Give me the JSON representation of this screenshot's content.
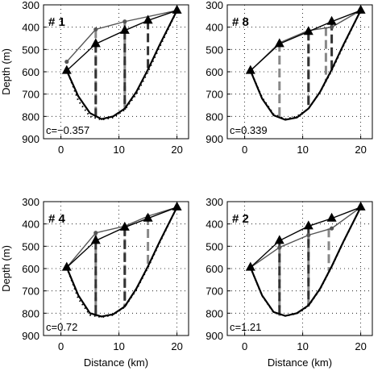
{
  "figure": {
    "xlabel": "Distance (km)",
    "ylabel": "Depth (m)"
  },
  "chart_data": [
    {
      "type": "line",
      "panel_label": "# 1",
      "c_label": "c=−0.357",
      "xlabel": "",
      "ylabel": "Depth (m)",
      "xlim": [
        -3,
        22
      ],
      "ylim": [
        300,
        900
      ],
      "y_reversed": true,
      "grid": true,
      "xticks": [
        "0",
        "10",
        "20"
      ],
      "yticks": [
        "300",
        "400",
        "500",
        "600",
        "700",
        "800",
        "900"
      ],
      "series": [
        {
          "role": "mesh-upper",
          "x": [
            1,
            6,
            11,
            20
          ],
          "y": [
            555,
            410,
            375,
            325
          ],
          "marker": "dot",
          "color": "#555555"
        },
        {
          "role": "mesh-lower",
          "x": [
            1,
            6,
            11,
            15,
            20
          ],
          "y": [
            595,
            475,
            415,
            370,
            325
          ],
          "marker": "triangle",
          "color": "#000000"
        },
        {
          "role": "bed-solid",
          "x": [
            1,
            3,
            5,
            7,
            9,
            11,
            13,
            15,
            17,
            20
          ],
          "y": [
            595,
            710,
            785,
            812,
            800,
            765,
            690,
            590,
            480,
            325
          ],
          "style": "solid"
        },
        {
          "role": "bed-dotted",
          "x": [
            1,
            3,
            5,
            7,
            9,
            11,
            13,
            15,
            17,
            20
          ],
          "y": [
            590,
            730,
            800,
            815,
            805,
            770,
            700,
            600,
            490,
            325
          ],
          "style": "dotted"
        }
      ],
      "verticals": [
        {
          "x": 6,
          "y": [
            410,
            810
          ],
          "color": "#888888"
        },
        {
          "x": 6,
          "y": [
            475,
            810
          ],
          "color": "#333333"
        },
        {
          "x": 11,
          "y": [
            375,
            770
          ],
          "color": "#888888"
        },
        {
          "x": 11,
          "y": [
            415,
            770
          ],
          "color": "#333333"
        },
        {
          "x": 15,
          "y": [
            370,
            600
          ],
          "color": "#333333"
        }
      ]
    },
    {
      "type": "line",
      "panel_label": "# 8",
      "c_label": "c=0.339",
      "xlabel": "",
      "ylabel": "",
      "xlim": [
        -3,
        22
      ],
      "ylim": [
        300,
        900
      ],
      "y_reversed": true,
      "grid": true,
      "xticks": [
        "0",
        "10",
        "20"
      ],
      "yticks": [
        "300",
        "400",
        "500",
        "600",
        "700",
        "800",
        "900"
      ],
      "series": [
        {
          "role": "mesh-upper",
          "x": [
            1,
            6,
            11,
            15,
            20
          ],
          "y": [
            595,
            470,
            415,
            400,
            325
          ],
          "marker": "dot",
          "color": "#555555"
        },
        {
          "role": "mesh-lower",
          "x": [
            1,
            6,
            11,
            15,
            20
          ],
          "y": [
            595,
            475,
            420,
            375,
            325
          ],
          "marker": "triangle",
          "color": "#000000"
        },
        {
          "role": "bed-solid",
          "x": [
            1,
            3,
            5,
            7,
            9,
            11,
            13,
            15,
            17,
            20
          ],
          "y": [
            595,
            720,
            795,
            815,
            805,
            765,
            690,
            590,
            480,
            325
          ],
          "style": "solid"
        },
        {
          "role": "bed-dotted",
          "x": [
            1,
            3,
            5,
            7,
            9,
            11,
            13,
            15,
            17,
            20
          ],
          "y": [
            595,
            715,
            790,
            812,
            800,
            765,
            692,
            595,
            485,
            325
          ],
          "style": "dotted"
        }
      ],
      "verticals": [
        {
          "x": 6,
          "y": [
            470,
            812
          ],
          "color": "#888888"
        },
        {
          "x": 11,
          "y": [
            415,
            765
          ],
          "color": "#888888"
        },
        {
          "x": 11,
          "y": [
            420,
            765
          ],
          "color": "#333333"
        },
        {
          "x": 14,
          "y": [
            400,
            640
          ],
          "color": "#888888"
        },
        {
          "x": 15,
          "y": [
            375,
            590
          ],
          "color": "#333333"
        }
      ]
    },
    {
      "type": "line",
      "panel_label": "# 4",
      "c_label": "c=0.72",
      "xlabel": "Distance (km)",
      "ylabel": "Depth (m)",
      "xlim": [
        -3,
        22
      ],
      "ylim": [
        300,
        900
      ],
      "y_reversed": true,
      "grid": true,
      "xticks": [
        "0",
        "10",
        "20"
      ],
      "yticks": [
        "300",
        "400",
        "500",
        "600",
        "700",
        "800",
        "900"
      ],
      "series": [
        {
          "role": "mesh-upper",
          "x": [
            1,
            6,
            11,
            15,
            20
          ],
          "y": [
            595,
            440,
            410,
            365,
            325
          ],
          "marker": "dot",
          "color": "#555555"
        },
        {
          "role": "mesh-lower",
          "x": [
            1,
            6,
            11,
            15,
            20
          ],
          "y": [
            595,
            475,
            415,
            375,
            325
          ],
          "marker": "triangle",
          "color": "#000000"
        },
        {
          "role": "bed-solid",
          "x": [
            1,
            3,
            5,
            7,
            9,
            11,
            13,
            15,
            17,
            20
          ],
          "y": [
            595,
            720,
            800,
            815,
            805,
            770,
            690,
            590,
            480,
            325
          ],
          "style": "solid"
        },
        {
          "role": "bed-dotted",
          "x": [
            1,
            3,
            5,
            7,
            9,
            11,
            13,
            15,
            17,
            20
          ],
          "y": [
            595,
            735,
            808,
            818,
            808,
            772,
            695,
            595,
            485,
            325
          ],
          "style": "dotted"
        }
      ],
      "verticals": [
        {
          "x": 6,
          "y": [
            440,
            815
          ],
          "color": "#888888"
        },
        {
          "x": 6,
          "y": [
            475,
            815
          ],
          "color": "#333333"
        },
        {
          "x": 11,
          "y": [
            410,
            770
          ],
          "color": "#888888"
        },
        {
          "x": 11,
          "y": [
            415,
            770
          ],
          "color": "#333333"
        },
        {
          "x": 15,
          "y": [
            365,
            590
          ],
          "color": "#888888"
        }
      ]
    },
    {
      "type": "line",
      "panel_label": "# 2",
      "c_label": "c=1.21",
      "xlabel": "Distance (km)",
      "ylabel": "",
      "xlim": [
        -3,
        22
      ],
      "ylim": [
        300,
        900
      ],
      "y_reversed": true,
      "grid": true,
      "xticks": [
        "0",
        "10",
        "20"
      ],
      "yticks": [
        "300",
        "400",
        "500",
        "600",
        "700",
        "800",
        "900"
      ],
      "series": [
        {
          "role": "mesh-upper",
          "x": [
            1,
            6,
            11,
            15,
            20
          ],
          "y": [
            595,
            505,
            450,
            420,
            325
          ],
          "marker": "dot",
          "color": "#555555"
        },
        {
          "role": "mesh-lower",
          "x": [
            1,
            6,
            11,
            15,
            20
          ],
          "y": [
            595,
            475,
            410,
            375,
            325
          ],
          "marker": "triangle",
          "color": "#000000"
        },
        {
          "role": "bed-solid",
          "x": [
            1,
            3,
            5,
            7,
            9,
            11,
            13,
            15,
            17,
            20
          ],
          "y": [
            595,
            720,
            795,
            812,
            800,
            765,
            690,
            590,
            480,
            325
          ],
          "style": "solid"
        },
        {
          "role": "bed-dotted",
          "x": [
            1,
            3,
            5,
            7,
            9,
            11,
            13,
            15,
            17,
            20
          ],
          "y": [
            595,
            722,
            797,
            812,
            802,
            768,
            692,
            592,
            482,
            325
          ],
          "style": "dotted"
        }
      ],
      "verticals": [
        {
          "x": 6,
          "y": [
            505,
            812
          ],
          "color": "#888888"
        },
        {
          "x": 6,
          "y": [
            475,
            812
          ],
          "color": "#333333"
        },
        {
          "x": 11,
          "y": [
            450,
            765
          ],
          "color": "#888888"
        },
        {
          "x": 11,
          "y": [
            410,
            765
          ],
          "color": "#333333"
        },
        {
          "x": 14.5,
          "y": [
            420,
            610
          ],
          "color": "#888888"
        }
      ]
    }
  ]
}
